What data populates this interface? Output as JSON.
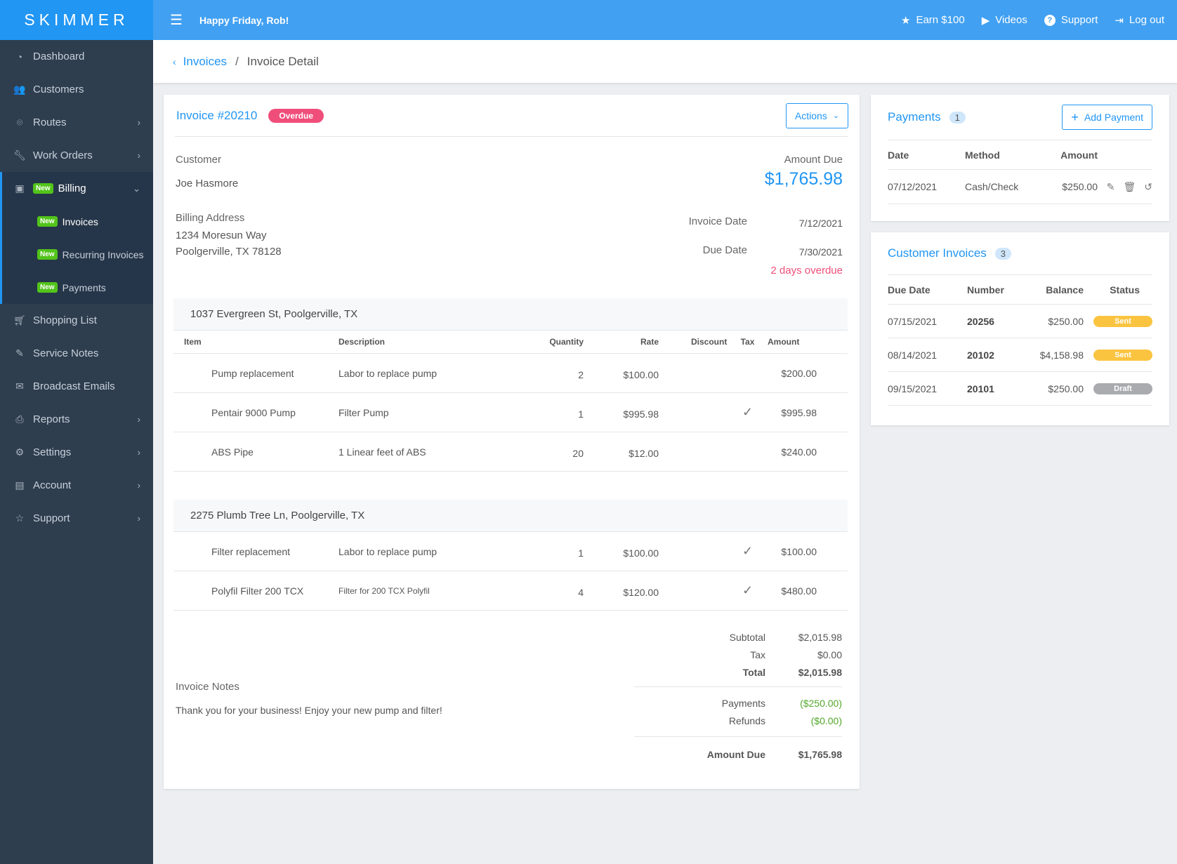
{
  "topbar": {
    "logo": "SKIMMER",
    "greeting": "Happy Friday, Rob!",
    "links": [
      {
        "label": "Earn $100",
        "icon": "star-icon"
      },
      {
        "label": "Videos",
        "icon": "play-icon"
      },
      {
        "label": "Support",
        "icon": "question-icon"
      },
      {
        "label": "Log out",
        "icon": "logout-icon"
      }
    ]
  },
  "sidebar": {
    "badge": "New",
    "items": [
      {
        "label": "Dashboard"
      },
      {
        "label": "Customers"
      },
      {
        "label": "Routes"
      },
      {
        "label": "Work Orders"
      },
      {
        "label": "Billing"
      },
      {
        "label": "Shopping List"
      },
      {
        "label": "Service Notes"
      },
      {
        "label": "Broadcast Emails"
      },
      {
        "label": "Reports"
      },
      {
        "label": "Settings"
      },
      {
        "label": "Account"
      },
      {
        "label": "Support"
      }
    ],
    "billing_sub": [
      {
        "label": "Invoices"
      },
      {
        "label": "Recurring Invoices"
      },
      {
        "label": "Payments"
      }
    ]
  },
  "breadcrumb": {
    "parent": "Invoices",
    "current": "Invoice Detail"
  },
  "invoice": {
    "title": "Invoice #20210",
    "status": "Overdue",
    "actions_label": "Actions",
    "customer_label": "Customer",
    "customer": "Joe Hasmore",
    "amount_due_label": "Amount Due",
    "amount_due": "$1,765.98",
    "billing_label": "Billing Address",
    "address1": "1234 Moresun Way",
    "address2": "Poolgerville, TX 78128",
    "invoice_date_label": "Invoice Date",
    "invoice_date": "7/12/2021",
    "due_date_label": "Due Date",
    "due_date": "7/30/2021",
    "overdue_note": "2 days overdue",
    "columns": [
      "Item",
      "Description",
      "Quantity",
      "Rate",
      "Discount",
      "Tax",
      "Amount"
    ],
    "groups": [
      {
        "location": "1037 Evergreen St, Poolgerville, TX",
        "lines": [
          {
            "item": "Pump replacement",
            "description": "Labor to replace pump",
            "quantity": "2",
            "rate": "$100.00",
            "discount": "",
            "tax": false,
            "amount": "$200.00"
          },
          {
            "item": "Pentair 9000 Pump",
            "description": "Filter Pump",
            "quantity": "1",
            "rate": "$995.98",
            "discount": "",
            "tax": true,
            "amount": "$995.98"
          },
          {
            "item": "ABS Pipe",
            "description": "1 Linear feet of ABS",
            "quantity": "20",
            "rate": "$12.00",
            "discount": "",
            "tax": false,
            "amount": "$240.00"
          }
        ]
      },
      {
        "location": "2275 Plumb Tree Ln, Poolgerville, TX",
        "lines": [
          {
            "item": "Filter replacement",
            "description": "Labor to replace pump",
            "quantity": "1",
            "rate": "$100.00",
            "discount": "",
            "tax": true,
            "amount": "$100.00"
          },
          {
            "item": "Polyfil Filter 200 TCX",
            "description": "Filter for 200 TCX Polyfil",
            "quantity": "4",
            "rate": "$120.00",
            "discount": "",
            "tax": true,
            "amount": "$480.00"
          }
        ]
      }
    ],
    "notes_label": "Invoice Notes",
    "notes": "Thank you for your business! Enjoy your new pump and filter!",
    "totals": {
      "subtotal_label": "Subtotal",
      "subtotal": "$2,015.98",
      "tax_label": "Tax",
      "tax": "$0.00",
      "total_label": "Total",
      "total": "$2,015.98",
      "payments_label": "Payments",
      "payments": "($250.00)",
      "refunds_label": "Refunds",
      "refunds": "($0.00)",
      "amount_due_label": "Amount Due",
      "amount_due": "$1,765.98"
    }
  },
  "payments": {
    "title": "Payments",
    "count": "1",
    "add_label": "Add Payment",
    "columns": [
      "Date",
      "Method",
      "Amount"
    ],
    "rows": [
      {
        "date": "07/12/2021",
        "method": "Cash/Check",
        "amount": "$250.00"
      }
    ]
  },
  "customer_invoices": {
    "title": "Customer Invoices",
    "count": "3",
    "columns": [
      "Due Date",
      "Number",
      "Balance",
      "Status"
    ],
    "rows": [
      {
        "due": "07/15/2021",
        "number": "20256",
        "balance": "$250.00",
        "status": "Sent",
        "color": "#fbc440"
      },
      {
        "due": "08/14/2021",
        "number": "20102",
        "balance": "$4,158.98",
        "status": "Sent",
        "color": "#fbc440"
      },
      {
        "due": "09/15/2021",
        "number": "20101",
        "balance": "$250.00",
        "status": "Draft",
        "color": "#a9abae"
      }
    ]
  },
  "colors": {
    "accent": "#2196f3",
    "overdue": "#f04e7a",
    "new_badge": "#52c41a",
    "sidebar": "#2e3e4f"
  }
}
